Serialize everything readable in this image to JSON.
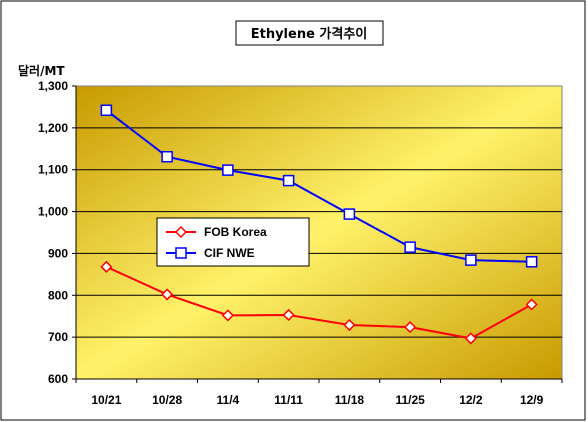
{
  "chart_data": {
    "type": "line",
    "title": "Ethylene 가격추이",
    "ylabel": "달러/MT",
    "xlabel": "",
    "categories": [
      "10/21",
      "10/28",
      "11/4",
      "11/11",
      "11/18",
      "11/25",
      "12/2",
      "12/9"
    ],
    "ylim": [
      600,
      1300
    ],
    "yticks": [
      "600",
      "700",
      "800",
      "900",
      "1,000",
      "1,100",
      "1,200",
      "1,300"
    ],
    "grid": "horizontal",
    "legend_position": "center-left",
    "series": [
      {
        "name": "FOB Korea",
        "color": "#ff0000",
        "marker": "diamond",
        "values": [
          868,
          802,
          752,
          753,
          729,
          724,
          697,
          778
        ]
      },
      {
        "name": "CIF NWE",
        "color": "#0000ff",
        "marker": "square",
        "values": [
          1242,
          1131,
          1099,
          1074,
          994,
          915,
          884,
          880
        ]
      }
    ],
    "colors": {
      "plot_light": "#fff26a",
      "plot_dark": "#c89a00",
      "grid": "#000000"
    }
  }
}
